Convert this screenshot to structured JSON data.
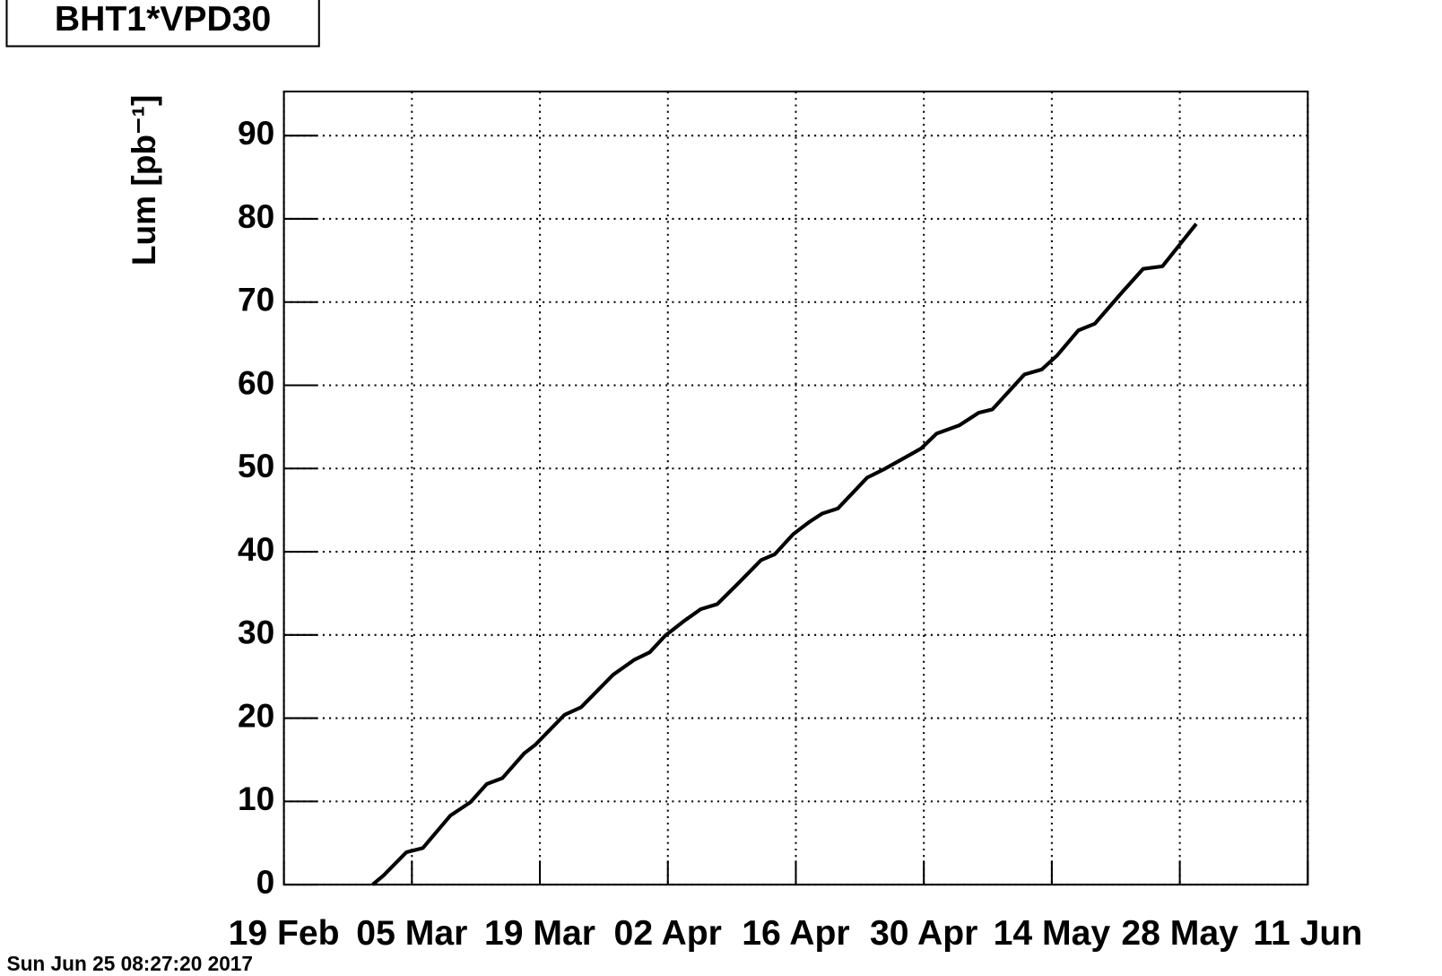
{
  "chart_data": {
    "type": "line",
    "title": "BHT1*VPD30",
    "y_label": "Lum [pb⁻¹]",
    "footer": "Sun Jun 25 08:27:20 2017",
    "x": [
      59.7,
      60.9,
      63.4,
      65.2,
      68.2,
      70.4,
      72.2,
      73.9,
      76.3,
      77.5,
      80.7,
      82.5,
      86.0,
      88.3,
      90.0,
      91.7,
      93.8,
      95.6,
      97.4,
      99.6,
      102.2,
      103.7,
      105.7,
      107.5,
      108.9,
      110.6,
      113.8,
      115.8,
      118.4,
      119.7,
      121.4,
      123.9,
      126.0,
      127.5,
      131.0,
      132.9,
      134.6,
      136.9,
      138.7,
      141.7,
      144.0,
      146.1,
      149.8
    ],
    "values": [
      0,
      1.1,
      3.9,
      4.4,
      8.3,
      9.9,
      12.1,
      12.8,
      15.8,
      16.8,
      20.4,
      21.3,
      25.2,
      27.0,
      27.9,
      29.9,
      31.7,
      33.1,
      33.7,
      36.1,
      39.0,
      39.7,
      42.1,
      43.6,
      44.6,
      45.2,
      48.9,
      50.0,
      51.6,
      52.4,
      54.2,
      55.2,
      56.7,
      57.1,
      61.3,
      61.9,
      63.6,
      66.6,
      67.4,
      71.2,
      74.0,
      74.3,
      79.4
    ],
    "color": "#000000",
    "xlim": [
      50,
      162
    ],
    "xticks": [
      {
        "value": 50,
        "label": "19 Feb"
      },
      {
        "value": 64,
        "label": "05 Mar"
      },
      {
        "value": 78,
        "label": "19 Mar"
      },
      {
        "value": 92,
        "label": "02 Apr"
      },
      {
        "value": 106,
        "label": "16 Apr"
      },
      {
        "value": 120,
        "label": "30 Apr"
      },
      {
        "value": 134,
        "label": "14 May"
      },
      {
        "value": 148,
        "label": "28 May"
      },
      {
        "value": 162,
        "label": "11 Jun"
      }
    ],
    "ylim": [
      0,
      95.3
    ],
    "yticks": [
      0,
      10,
      20,
      30,
      40,
      50,
      60,
      70,
      80,
      90
    ],
    "grid": true
  }
}
